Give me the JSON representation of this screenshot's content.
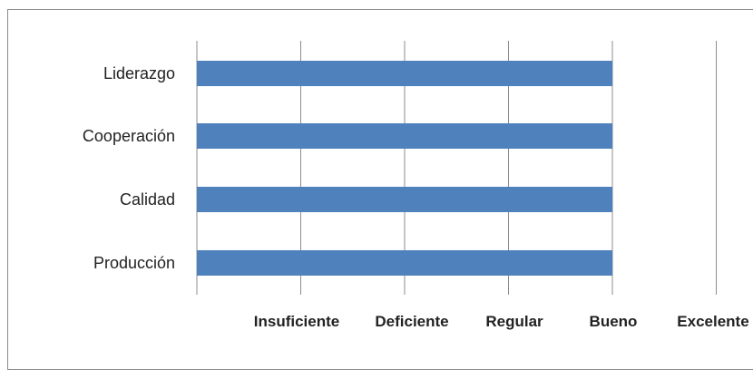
{
  "chart_data": {
    "type": "bar",
    "orientation": "horizontal",
    "categories": [
      "Liderazgo",
      "Cooperación",
      "Calidad",
      "Producción"
    ],
    "values": [
      4,
      4,
      4,
      4
    ],
    "x_tick_labels": [
      "Insuficiente",
      "Deficiente",
      "Regular",
      "Bueno",
      "Excelente"
    ],
    "xlim": [
      0,
      5
    ],
    "title": "",
    "xlabel": "",
    "ylabel": "",
    "grid": true,
    "legend": "none",
    "bar_color": "#4f81bd",
    "grid_color": "#8c8c8c"
  }
}
